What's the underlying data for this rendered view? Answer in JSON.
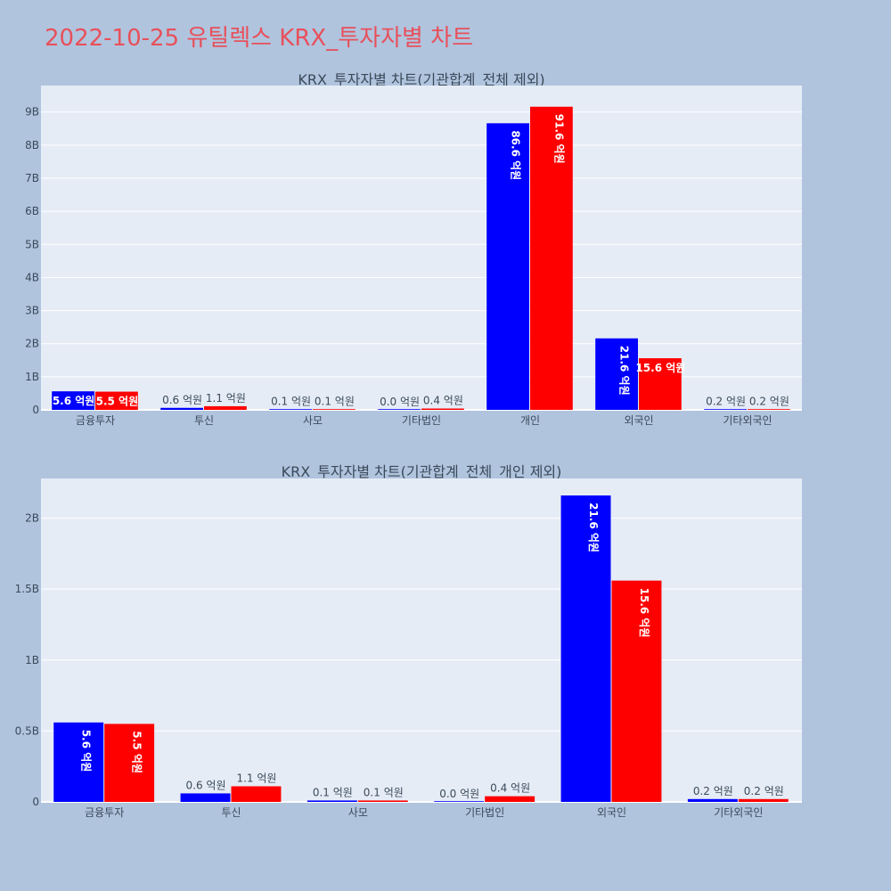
{
  "title": "2022-10-25 유틸렉스 KRX_투자자별 차트",
  "colors": {
    "series_a": "#0000ff",
    "series_b": "#ff0000",
    "plot_bg": "#e5ecf6",
    "page_bg": "#b0c4de",
    "title": "#e8505b"
  },
  "chart_data": [
    {
      "type": "bar",
      "title": "KRX_투자자별 차트(기관합계_전체 제외)",
      "categories": [
        "금융투자",
        "투신",
        "사모",
        "기타법인",
        "개인",
        "외국인",
        "기타외국인"
      ],
      "series": [
        {
          "values": [
            0.56,
            0.06,
            0.01,
            0.0,
            8.66,
            2.16,
            0.02
          ],
          "labels": [
            "5.6 억원",
            "0.6 억원",
            "0.1 억원",
            "0.0 억원",
            "86.6 억원",
            "21.6 억원",
            "0.2 억원"
          ]
        },
        {
          "values": [
            0.55,
            0.11,
            0.01,
            0.04,
            9.16,
            1.56,
            0.02
          ],
          "labels": [
            "5.5 억원",
            "1.1 억원",
            "0.1 억원",
            "0.4 억원",
            "91.6 억원",
            "15.6 억원",
            "0.2 억원"
          ]
        }
      ],
      "yticks": [
        0,
        1,
        2,
        3,
        4,
        5,
        6,
        7,
        8,
        9
      ],
      "ytick_labels": [
        "0",
        "1B",
        "2B",
        "3B",
        "4B",
        "5B",
        "6B",
        "7B",
        "8B",
        "9B"
      ],
      "ylim": [
        0,
        9.8
      ],
      "grid": true
    },
    {
      "type": "bar",
      "title": "KRX_투자자별 차트(기관합계_전체_개인 제외)",
      "categories": [
        "금융투자",
        "투신",
        "사모",
        "기타법인",
        "외국인",
        "기타외국인"
      ],
      "series": [
        {
          "values": [
            0.56,
            0.06,
            0.01,
            0.0,
            2.16,
            0.02
          ],
          "labels": [
            "5.6 억원",
            "0.6 억원",
            "0.1 억원",
            "0.0 억원",
            "21.6 억원",
            "0.2 억원"
          ]
        },
        {
          "values": [
            0.55,
            0.11,
            0.01,
            0.04,
            1.56,
            0.02
          ],
          "labels": [
            "5.5 억원",
            "1.1 억원",
            "0.1 억원",
            "0.4 억원",
            "15.6 억원",
            "0.2 억원"
          ]
        }
      ],
      "yticks": [
        0,
        0.5,
        1,
        1.5,
        2
      ],
      "ytick_labels": [
        "0",
        "0.5B",
        "1B",
        "1.5B",
        "2B"
      ],
      "ylim": [
        0,
        2.28
      ],
      "grid": true
    }
  ]
}
